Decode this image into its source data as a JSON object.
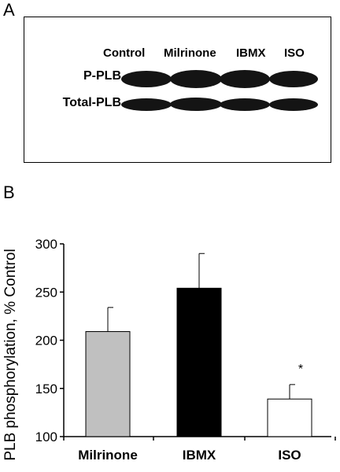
{
  "panel_a": {
    "letter": "A",
    "lanes": [
      "Control",
      "Milrinone",
      "IBMX",
      "ISO"
    ],
    "rows": [
      "P-PLB",
      "Total-PLB"
    ]
  },
  "panel_b": {
    "letter": "B"
  },
  "chart_data": {
    "type": "bar",
    "categories": [
      "Milrinone",
      "IBMX",
      "ISO"
    ],
    "values": [
      209,
      254,
      139
    ],
    "errors": [
      25,
      36,
      15
    ],
    "bar_colors": [
      "#c0c0c0",
      "#000000",
      "#ffffff"
    ],
    "annotations": [
      {
        "category": "ISO",
        "text": "*"
      }
    ],
    "ylabel": "PLB phosphorylation, % Control",
    "ylim": [
      100,
      300
    ],
    "yticks": [
      "100",
      "150",
      "200",
      "250",
      "300"
    ],
    "grid": false
  }
}
